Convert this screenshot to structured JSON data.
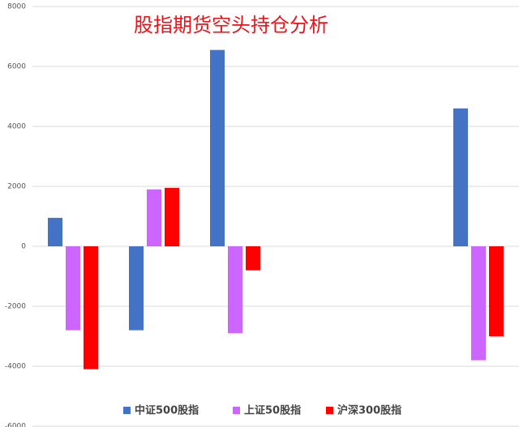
{
  "chart_data": {
    "type": "bar",
    "title": "股指期货空头持仓分析",
    "categories": [
      null,
      null,
      null,
      null,
      null,
      null
    ],
    "series": [
      {
        "name": "中证500股指",
        "color": "#4472c4",
        "values": [
          950,
          -2800,
          6550,
          null,
          null,
          4600
        ]
      },
      {
        "name": "上证50股指",
        "color": "#cc66ff",
        "values": [
          -2800,
          1900,
          -2900,
          null,
          null,
          -3800
        ]
      },
      {
        "name": "沪深300股指",
        "color": "#ff0000",
        "values": [
          -4100,
          1950,
          -800,
          null,
          null,
          -3000
        ]
      }
    ],
    "ylim": [
      -6000,
      8000
    ],
    "yticks": [
      -6000,
      -4000,
      -2000,
      0,
      2000,
      4000,
      6000,
      8000
    ],
    "grid": true
  }
}
